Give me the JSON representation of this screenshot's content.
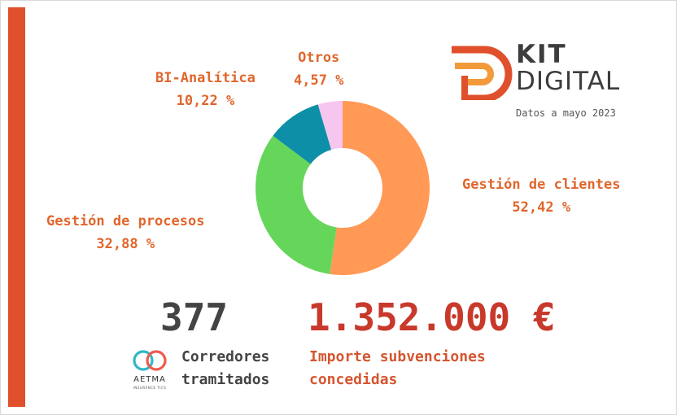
{
  "chart_data": {
    "type": "pie",
    "variant": "donut",
    "categories": [
      "Gestión de clientes",
      "Gestión de procesos",
      "BI-Analítica",
      "Otros"
    ],
    "values": [
      52.42,
      32.88,
      10.22,
      4.57
    ],
    "labels": {
      "clientes": {
        "name": "Gestión de clientes",
        "pct": "52,42 %"
      },
      "procesos": {
        "name": "Gestión de procesos",
        "pct": "32,88 %"
      },
      "bi": {
        "name": "BI-Analítica",
        "pct": "10,22 %"
      },
      "otros": {
        "name": "Otros",
        "pct": "4,57 %"
      }
    },
    "colors": [
      "#ff9955",
      "#66d65a",
      "#0e8fa8",
      "#f7c6ee"
    ],
    "legend": "none"
  },
  "logo": {
    "kit": "KIT",
    "digital": "DIGITAL",
    "date": "Datos a mayo 2023",
    "accent": "#e0502c"
  },
  "stats": {
    "brokers_value": "377",
    "brokers_caption_line1": "Corredores",
    "brokers_caption_line2": "tramitados",
    "amount_value": "1.352.000 €",
    "amount_caption_line1": "Importe subvenciones",
    "amount_caption_line2": "concedidas"
  },
  "aetma": {
    "name": "AETMA",
    "sub": "INSURANCE TICS"
  },
  "colors": {
    "side_bar": "#e0502c",
    "label_orange": "#e0662c",
    "amount_red": "#c8392b",
    "dark_text": "#444444"
  }
}
